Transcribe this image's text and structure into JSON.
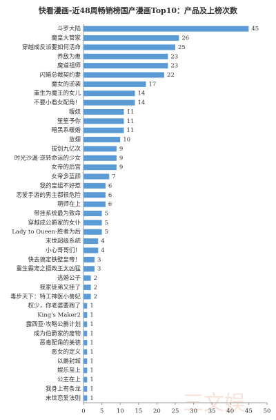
{
  "chart_data": {
    "type": "bar",
    "orientation": "horizontal",
    "title": "快看漫画-近48周畅销榜国产漫画Top10：产品及上榜次数",
    "categories": [
      "斗罗大陆",
      "魔皇大管家",
      "穿越成反派要如何活命",
      "养敌为患",
      "魔道祖师",
      "闪婚总裁契约妻",
      "魔女的逆袭",
      "重生为魔王的女儿",
      "不要小看女配角！",
      "暧奴",
      "笙笙予你",
      "暗黑系暖婚",
      "蓝翅",
      "拔剑九亿次",
      "时光沙漏·逆转命运的少女",
      "女帝的后宫",
      "女帝多蓝颜",
      "我的皇姐不好惹",
      "恋爱手游的男主都很危险",
      "萌师在上",
      "带挂系统最为致命",
      "穿越成公爵家的女仆",
      "Lady to Queen-胜者为后",
      "末世超级系统",
      "小心哥哥们！",
      "快去搞定铁壁皇帝！",
      "重生霸宠之摄政王太凶猛",
      "逃婚公子",
      "我家徒弟又挂了",
      "毒步天下：特工神医小兽妃",
      "权少，你老婆要跑了",
      "King's Maker2",
      "露西亚·攻略公爵计划",
      "成为伯爵家的废物",
      "恶毒配角的美德",
      "恶女的定义",
      "以爵封城",
      "娱乐至上",
      "公主在上",
      "我身上有条龙",
      "末世恋爱法则"
    ],
    "values": [
      45,
      26,
      25,
      23,
      23,
      22,
      17,
      14,
      14,
      11,
      11,
      11,
      10,
      9,
      9,
      9,
      7,
      6,
      6,
      6,
      5,
      5,
      5,
      4,
      4,
      3,
      3,
      2,
      2,
      2,
      1,
      1,
      1,
      1,
      1,
      1,
      1,
      1,
      1,
      1,
      1
    ],
    "color": "#5b9bd5",
    "xlim": [
      0,
      50
    ],
    "xticks": [
      0,
      5,
      10,
      15,
      20,
      25,
      30,
      35,
      40,
      45,
      50
    ],
    "watermark": "三文娱"
  }
}
